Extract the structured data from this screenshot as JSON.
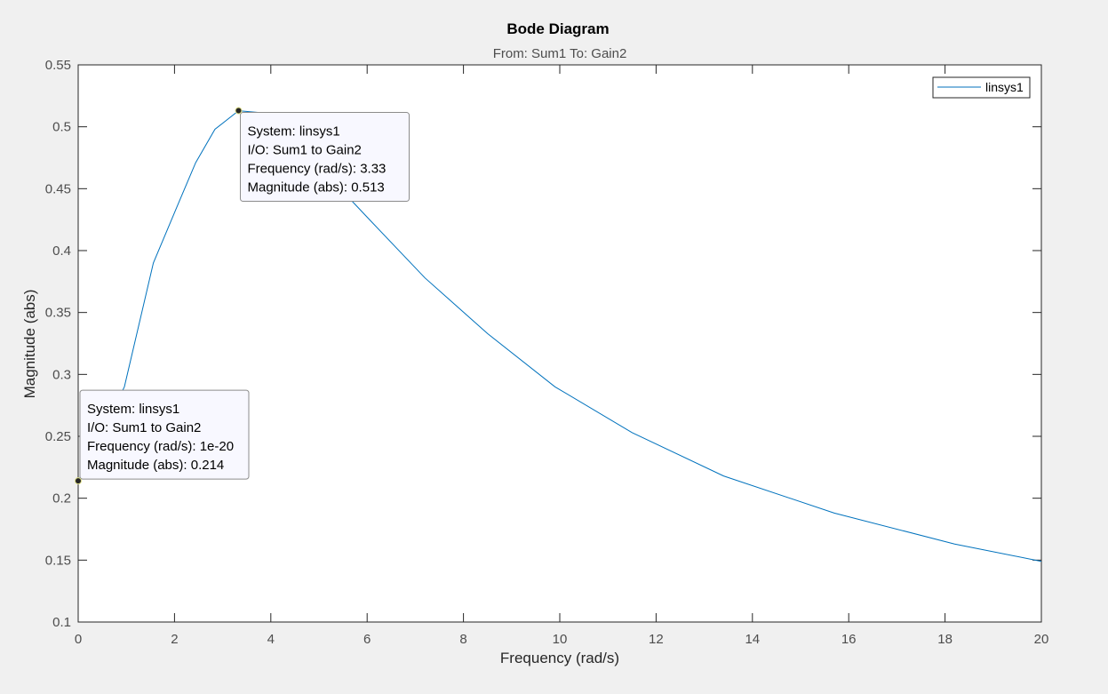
{
  "chart_data": {
    "type": "line",
    "title": "Bode Diagram",
    "subtitle": "From: Sum1  To: Gain2",
    "xlabel": "Frequency  (rad/s)",
    "ylabel": "Magnitude (abs)",
    "xlim": [
      0,
      20
    ],
    "ylim": [
      0.1,
      0.55
    ],
    "xticks": [
      0,
      2,
      4,
      6,
      8,
      10,
      12,
      14,
      16,
      18,
      20
    ],
    "xtick_labels": [
      "0",
      "2",
      "4",
      "6",
      "8",
      "10",
      "12",
      "14",
      "16",
      "18",
      "20"
    ],
    "yticks": [
      0.1,
      0.15,
      0.2,
      0.25,
      0.3,
      0.35,
      0.4,
      0.45,
      0.5,
      0.55
    ],
    "ytick_labels": [
      "0.1",
      "0.15",
      "0.2",
      "0.25",
      "0.3",
      "0.35",
      "0.4",
      "0.45",
      "0.5",
      "0.55"
    ],
    "grid": false,
    "legend_position": "top-right",
    "series": [
      {
        "name": "linsys1",
        "color": "#0072bd",
        "x": [
          0,
          0.96,
          1.56,
          2.08,
          2.44,
          2.84,
          3.33,
          4.2,
          5.2,
          6.0,
          7.2,
          8.5,
          9.9,
          11.5,
          13.4,
          15.7,
          18.2,
          20
        ],
        "y": [
          0.214,
          0.29,
          0.39,
          0.438,
          0.471,
          0.498,
          0.513,
          0.51,
          0.46,
          0.427,
          0.378,
          0.333,
          0.29,
          0.253,
          0.218,
          0.188,
          0.163,
          0.149
        ]
      }
    ],
    "datatips": [
      {
        "x": 3.33,
        "y": 0.513,
        "anchor": "below-right",
        "lines": [
          "System: linsys1",
          "I/O: Sum1 to Gain2",
          "Frequency (rad/s): 3.33",
          "Magnitude (abs): 0.513"
        ]
      },
      {
        "x": 0,
        "y": 0.214,
        "anchor": "above-right",
        "lines": [
          "System: linsys1",
          "I/O: Sum1 to Gain2",
          "Frequency (rad/s): 1e-20",
          "Magnitude (abs): 0.214"
        ]
      }
    ]
  }
}
